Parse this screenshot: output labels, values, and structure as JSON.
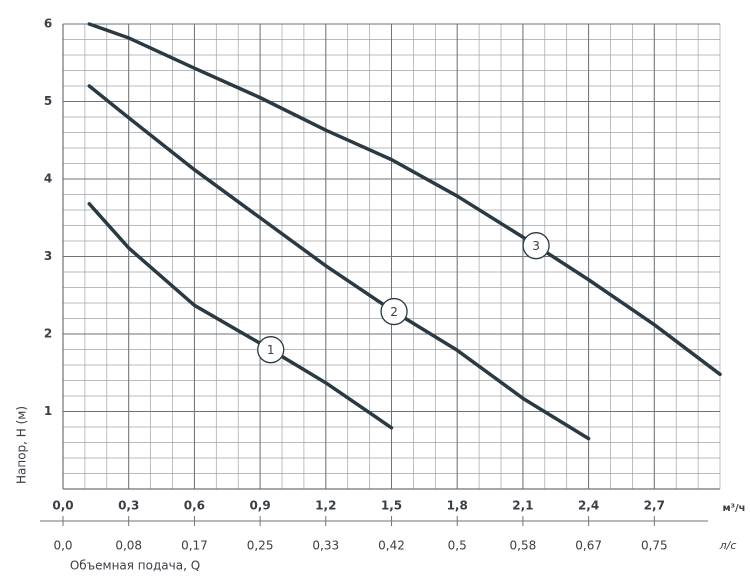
{
  "chart_data": {
    "type": "line",
    "y_label": "Напор, H (м)",
    "x_label": "Объемная подача, Q",
    "x_unit": "м³/ч",
    "x2_unit": "л/с",
    "xlim": [
      0,
      3.0
    ],
    "xticks": [
      {
        "value": 0,
        "label": "0,0"
      },
      {
        "value": 0.3,
        "label": "0,3"
      },
      {
        "value": 0.6,
        "label": "0,6"
      },
      {
        "value": 0.9,
        "label": "0,9"
      },
      {
        "value": 1.2,
        "label": "1,2"
      },
      {
        "value": 1.5,
        "label": "1,5"
      },
      {
        "value": 1.8,
        "label": "1,8"
      },
      {
        "value": 2.1,
        "label": "2,1"
      },
      {
        "value": 2.4,
        "label": "2,4"
      },
      {
        "value": 2.7,
        "label": "2,7"
      }
    ],
    "x2lim": [
      0,
      0.8333
    ],
    "x2ticks": [
      {
        "value": 0,
        "label": "0,0"
      },
      {
        "value": 0.0833,
        "label": "0,08"
      },
      {
        "value": 0.1667,
        "label": "0,17"
      },
      {
        "value": 0.25,
        "label": "0,25"
      },
      {
        "value": 0.3333,
        "label": "0,33"
      },
      {
        "value": 0.4167,
        "label": "0,42"
      },
      {
        "value": 0.5,
        "label": "0,5"
      },
      {
        "value": 0.5833,
        "label": "0,58"
      },
      {
        "value": 0.6667,
        "label": "0,67"
      },
      {
        "value": 0.75,
        "label": "0,75"
      }
    ],
    "ylim": [
      0,
      6
    ],
    "yticks": [
      1,
      2,
      3,
      4,
      5,
      6
    ],
    "grid": true,
    "series": [
      {
        "name": "1",
        "color": "#2b3a42",
        "x": [
          0.12,
          0.3,
          0.6,
          0.9,
          1.2,
          1.5
        ],
        "values": [
          3.68,
          3.11,
          2.37,
          1.88,
          1.37,
          0.79
        ]
      },
      {
        "name": "2",
        "color": "#2b3a42",
        "x": [
          0.12,
          0.3,
          0.6,
          0.9,
          1.2,
          1.5,
          1.8,
          2.1,
          2.4
        ],
        "values": [
          5.2,
          4.79,
          4.12,
          3.5,
          2.88,
          2.31,
          1.79,
          1.17,
          0.65
        ]
      },
      {
        "name": "3",
        "color": "#2b3a42",
        "x": [
          0.12,
          0.3,
          0.6,
          0.9,
          1.2,
          1.5,
          1.8,
          2.1,
          2.4,
          2.7,
          3.0
        ],
        "values": [
          6.0,
          5.82,
          5.43,
          5.05,
          4.63,
          4.25,
          3.78,
          3.25,
          2.7,
          2.12,
          1.48
        ]
      }
    ]
  }
}
